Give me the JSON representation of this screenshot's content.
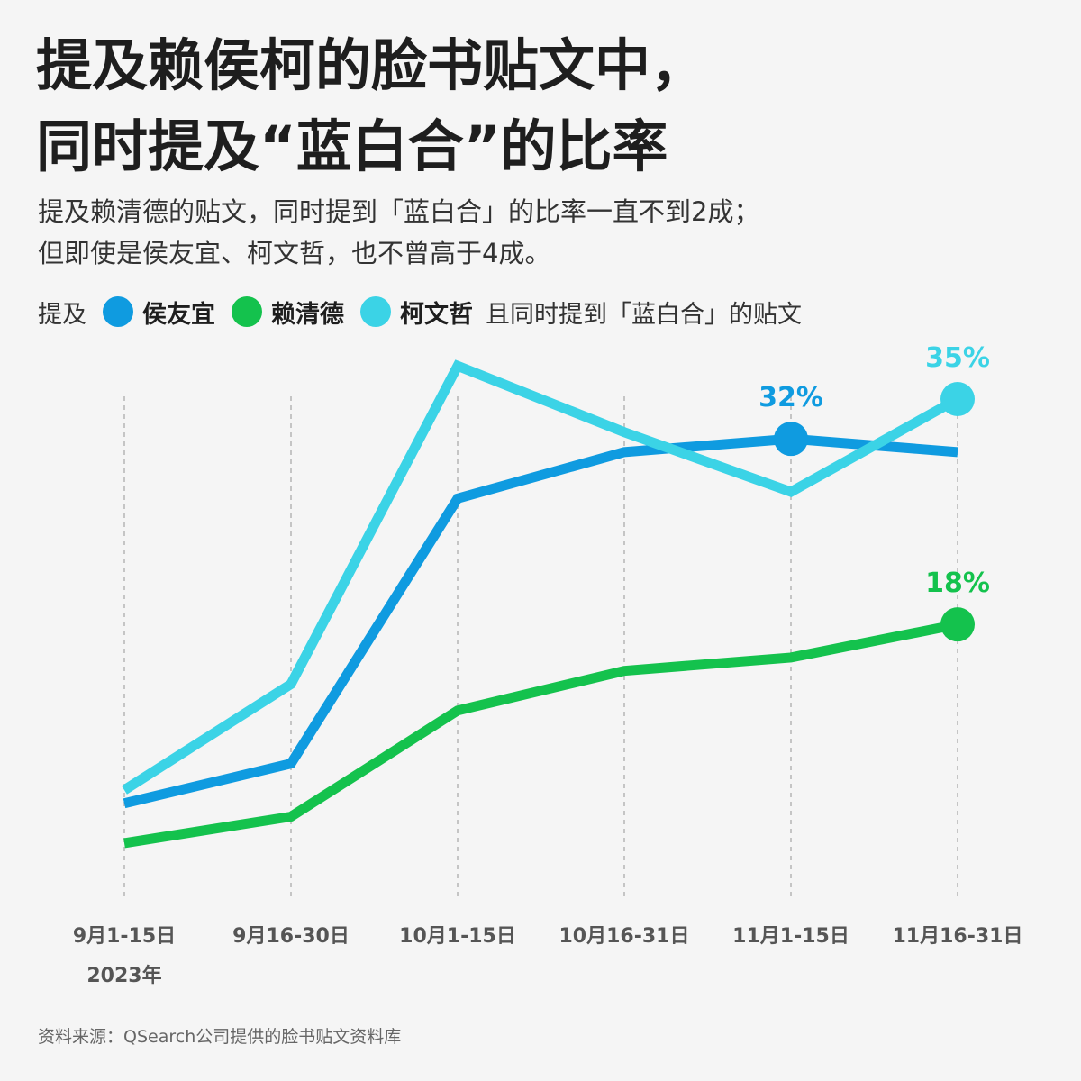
{
  "title_line1": "提及赖侯柯的脸书贴文中，",
  "title_line2": "同时提及“蓝白合”的比率",
  "subtitle_line1": "提及赖清德的贴文，同时提到「蓝白合」的比率一直不到2成；",
  "subtitle_line2": "但即使是侯友宜、柯文哲，也不曾高于4成。",
  "legend": {
    "prefix": "提及",
    "suffix": "且同时提到「蓝白合」的贴文"
  },
  "source": "资料来源：QSearch公司提供的脸书贴文资料库",
  "colors": {
    "hou": "#0f9be0",
    "lai": "#14c24d",
    "ko": "#3bd3e6",
    "grid": "#b5b5b5",
    "axis_text": "#555555"
  },
  "chart_data": {
    "type": "line",
    "categories": [
      "9月1-15日",
      "9月16-30日",
      "10月1-15日",
      "10月16-31日",
      "11月1-15日",
      "11月16-31日"
    ],
    "year_label": "2023年",
    "series": [
      {
        "key": "hou",
        "name": "侯友宜",
        "values": [
          4.5,
          7.5,
          27.5,
          31.0,
          32.0,
          31.0
        ],
        "highlight_index": 4,
        "label": "32%"
      },
      {
        "key": "lai",
        "name": "赖清德",
        "values": [
          1.5,
          3.5,
          11.5,
          14.5,
          15.5,
          18.0
        ],
        "highlight_index": 5,
        "label": "18%"
      },
      {
        "key": "ko",
        "name": "柯文哲",
        "values": [
          5.5,
          13.5,
          37.5,
          32.5,
          28.0,
          35.0
        ],
        "highlight_index": 5,
        "label": "35%"
      }
    ],
    "ylim": [
      0,
      42
    ],
    "grid": "vertical-dashed",
    "legend_placement": "top"
  }
}
